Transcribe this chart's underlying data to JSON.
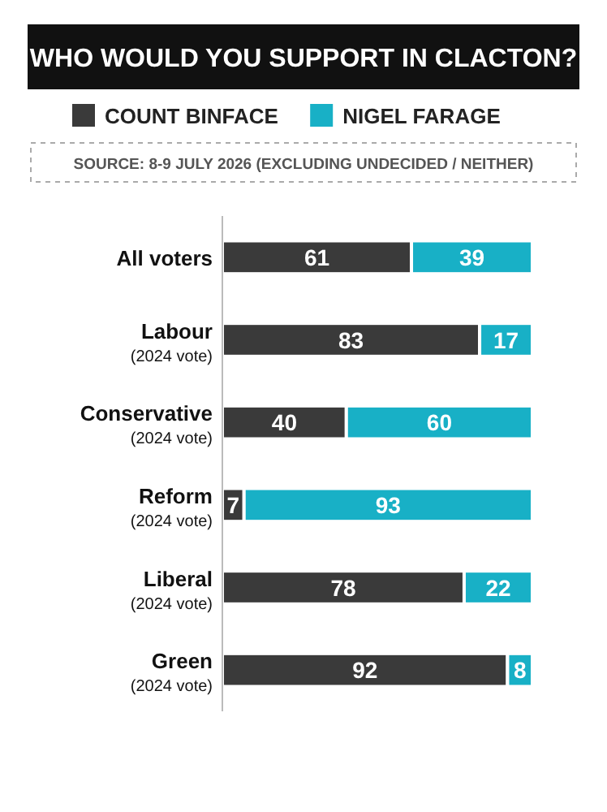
{
  "chart_data": {
    "type": "bar",
    "orientation": "horizontal",
    "stacked": true,
    "title": "WHO WOULD YOU SUPPORT IN CLACTON?",
    "annotations": [
      "SOURCE: 8-9 JULY 2026 (EXCLUDING UNDECIDED / NEITHER)"
    ],
    "categories": [
      "All voters",
      "Labour\n(2024 vote)",
      "Conservative\n(2024 vote)",
      "Reform\n(2024 vote)",
      "Liberal\n(2024 vote)",
      "Green\n(2024 vote)"
    ],
    "series": [
      {
        "name": "COUNT BINFACE",
        "color": "#3a3a3a",
        "values": [
          61,
          83,
          40,
          7,
          78,
          92
        ]
      },
      {
        "name": "NIGEL FARAGE",
        "color": "#18b0c6",
        "values": [
          39,
          17,
          60,
          93,
          22,
          8
        ]
      }
    ],
    "xlim": [
      0,
      100
    ],
    "data_labels": true,
    "legend": "top",
    "grid": false,
    "tick_labels": "y"
  }
}
